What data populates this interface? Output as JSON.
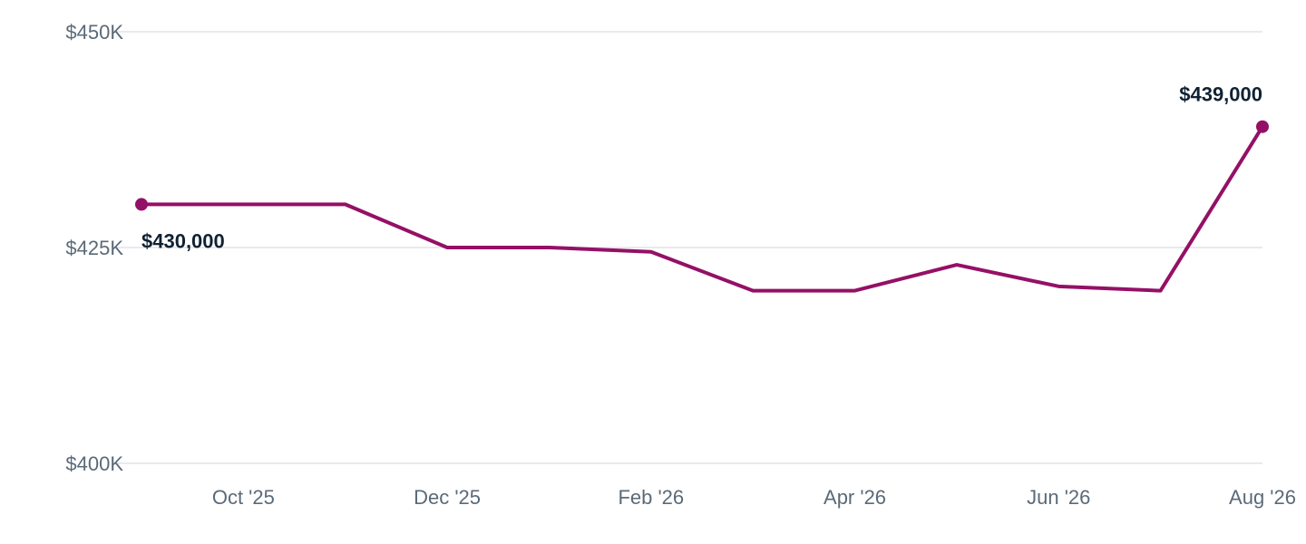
{
  "colors": {
    "series": "#941066",
    "grid": "#e1e4ea",
    "tick_text": "#5b6a78",
    "label_text": "#0f2233"
  },
  "chart_data": {
    "type": "line",
    "title": "",
    "xlabel": "",
    "ylabel": "",
    "x": [
      "2025-09",
      "2025-10",
      "2025-11",
      "2025-12",
      "2026-01",
      "2026-02",
      "2026-03",
      "2026-04",
      "2026-05",
      "2026-06",
      "2026-07",
      "2026-08"
    ],
    "series": [
      {
        "values": [
          430000,
          430000,
          430000,
          425000,
          425000,
          424500,
          420000,
          420000,
          423000,
          420500,
          420000,
          439000
        ]
      }
    ],
    "ylim": [
      400000,
      450000
    ],
    "y_ticks": [
      {
        "value": 400000,
        "label": "$400K"
      },
      {
        "value": 425000,
        "label": "$425K"
      },
      {
        "value": 450000,
        "label": "$450K"
      }
    ],
    "x_ticks": [
      {
        "x": "2025-10",
        "label": "Oct '25"
      },
      {
        "x": "2025-12",
        "label": "Dec '25"
      },
      {
        "x": "2026-02",
        "label": "Feb '26"
      },
      {
        "x": "2026-04",
        "label": "Apr '26"
      },
      {
        "x": "2026-06",
        "label": "Jun '26"
      },
      {
        "x": "2026-08",
        "label": "Aug '26"
      }
    ],
    "annotations": [
      {
        "x": "2025-09",
        "value": 430000,
        "label": "$430,000",
        "position": "below-right"
      },
      {
        "x": "2026-08",
        "value": 439000,
        "label": "$439,000",
        "position": "above-left"
      }
    ],
    "grid": true,
    "legend": "none"
  }
}
